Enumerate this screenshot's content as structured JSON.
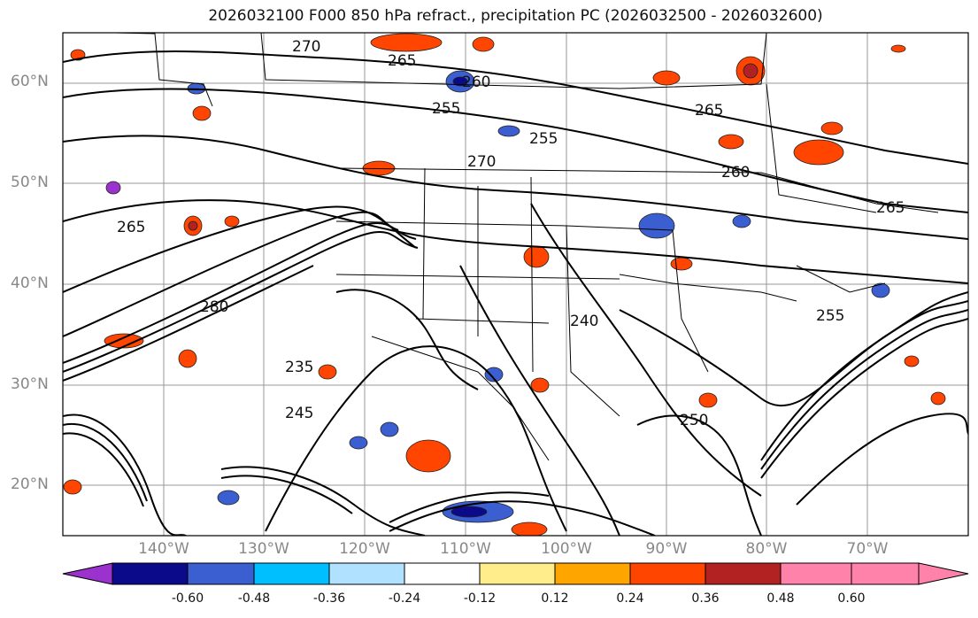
{
  "title": "2026032100 F000 850 hPa refract., precipitation PC (2026032500 - 2026032600)",
  "lat_labels": [
    "60°N",
    "50°N",
    "40°N",
    "30°N",
    "20°N"
  ],
  "lon_labels": [
    "140°W",
    "130°W",
    "120°W",
    "110°W",
    "100°W",
    "90°W",
    "80°W",
    "70°W"
  ],
  "contour_labels": [
    "270",
    "265",
    "260",
    "255",
    "250",
    "245",
    "240",
    "235",
    "280"
  ],
  "colorbar": {
    "ticks": [
      "-0.60",
      "-0.48",
      "-0.36",
      "-0.24",
      "-0.12",
      "0.12",
      "0.24",
      "0.36",
      "0.48",
      "0.60"
    ],
    "colors": [
      "#9b32cd",
      "#0a0a8a",
      "#3b5fd0",
      "#00bfff",
      "#b0e2ff",
      "#ffffff",
      "#ffec8b",
      "#ffa500",
      "#ff4500",
      "#b22222",
      "#ff82ab"
    ]
  }
}
